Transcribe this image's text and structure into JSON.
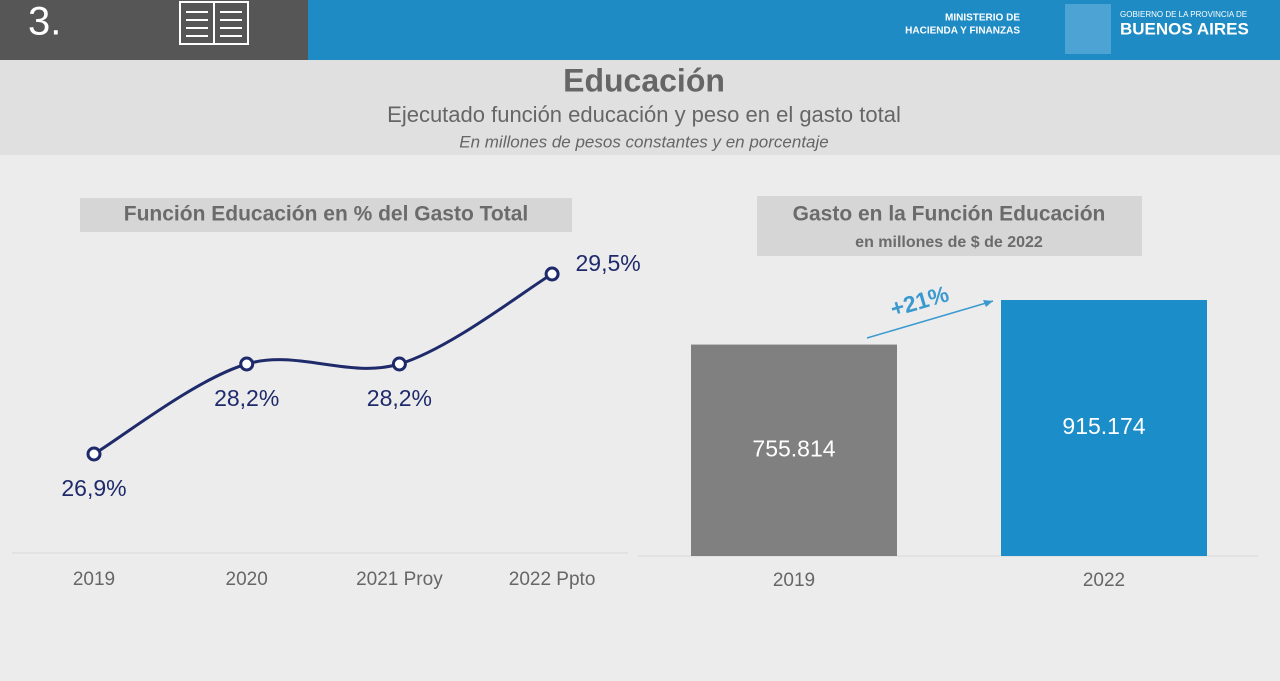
{
  "header": {
    "section": "3.",
    "ministry": [
      "MINISTERIO DE",
      "HACIENDA Y FINANZAS"
    ],
    "government": [
      "GOBIERNO DE LA PROVINCIA DE",
      "BUENOS AIRES"
    ],
    "title": "Educación",
    "subtitle": "Ejecutado función educación y peso en el gasto total",
    "note": "En millones de pesos constantes y en porcentaje"
  },
  "chart_data": [
    {
      "type": "line",
      "title": "Función Educación en % del Gasto Total",
      "categories": [
        "2019",
        "2020",
        "2021 Proy",
        "2022 Ppto"
      ],
      "values": [
        26.9,
        28.2,
        28.2,
        29.5
      ],
      "value_labels": [
        "26,9%",
        "28,2%",
        "28,2%",
        "29,5%"
      ],
      "color": "#1f2a6b"
    },
    {
      "type": "bar",
      "title": "Gasto en la Función Educación",
      "subtitle": "en millones de $ de 2022",
      "categories": [
        "2019",
        "2022"
      ],
      "values": [
        755814,
        915174
      ],
      "value_labels": [
        "755.814",
        "915.174"
      ],
      "colors": [
        "#808080",
        "#1b8dc8"
      ],
      "annotation": "+21%"
    }
  ]
}
